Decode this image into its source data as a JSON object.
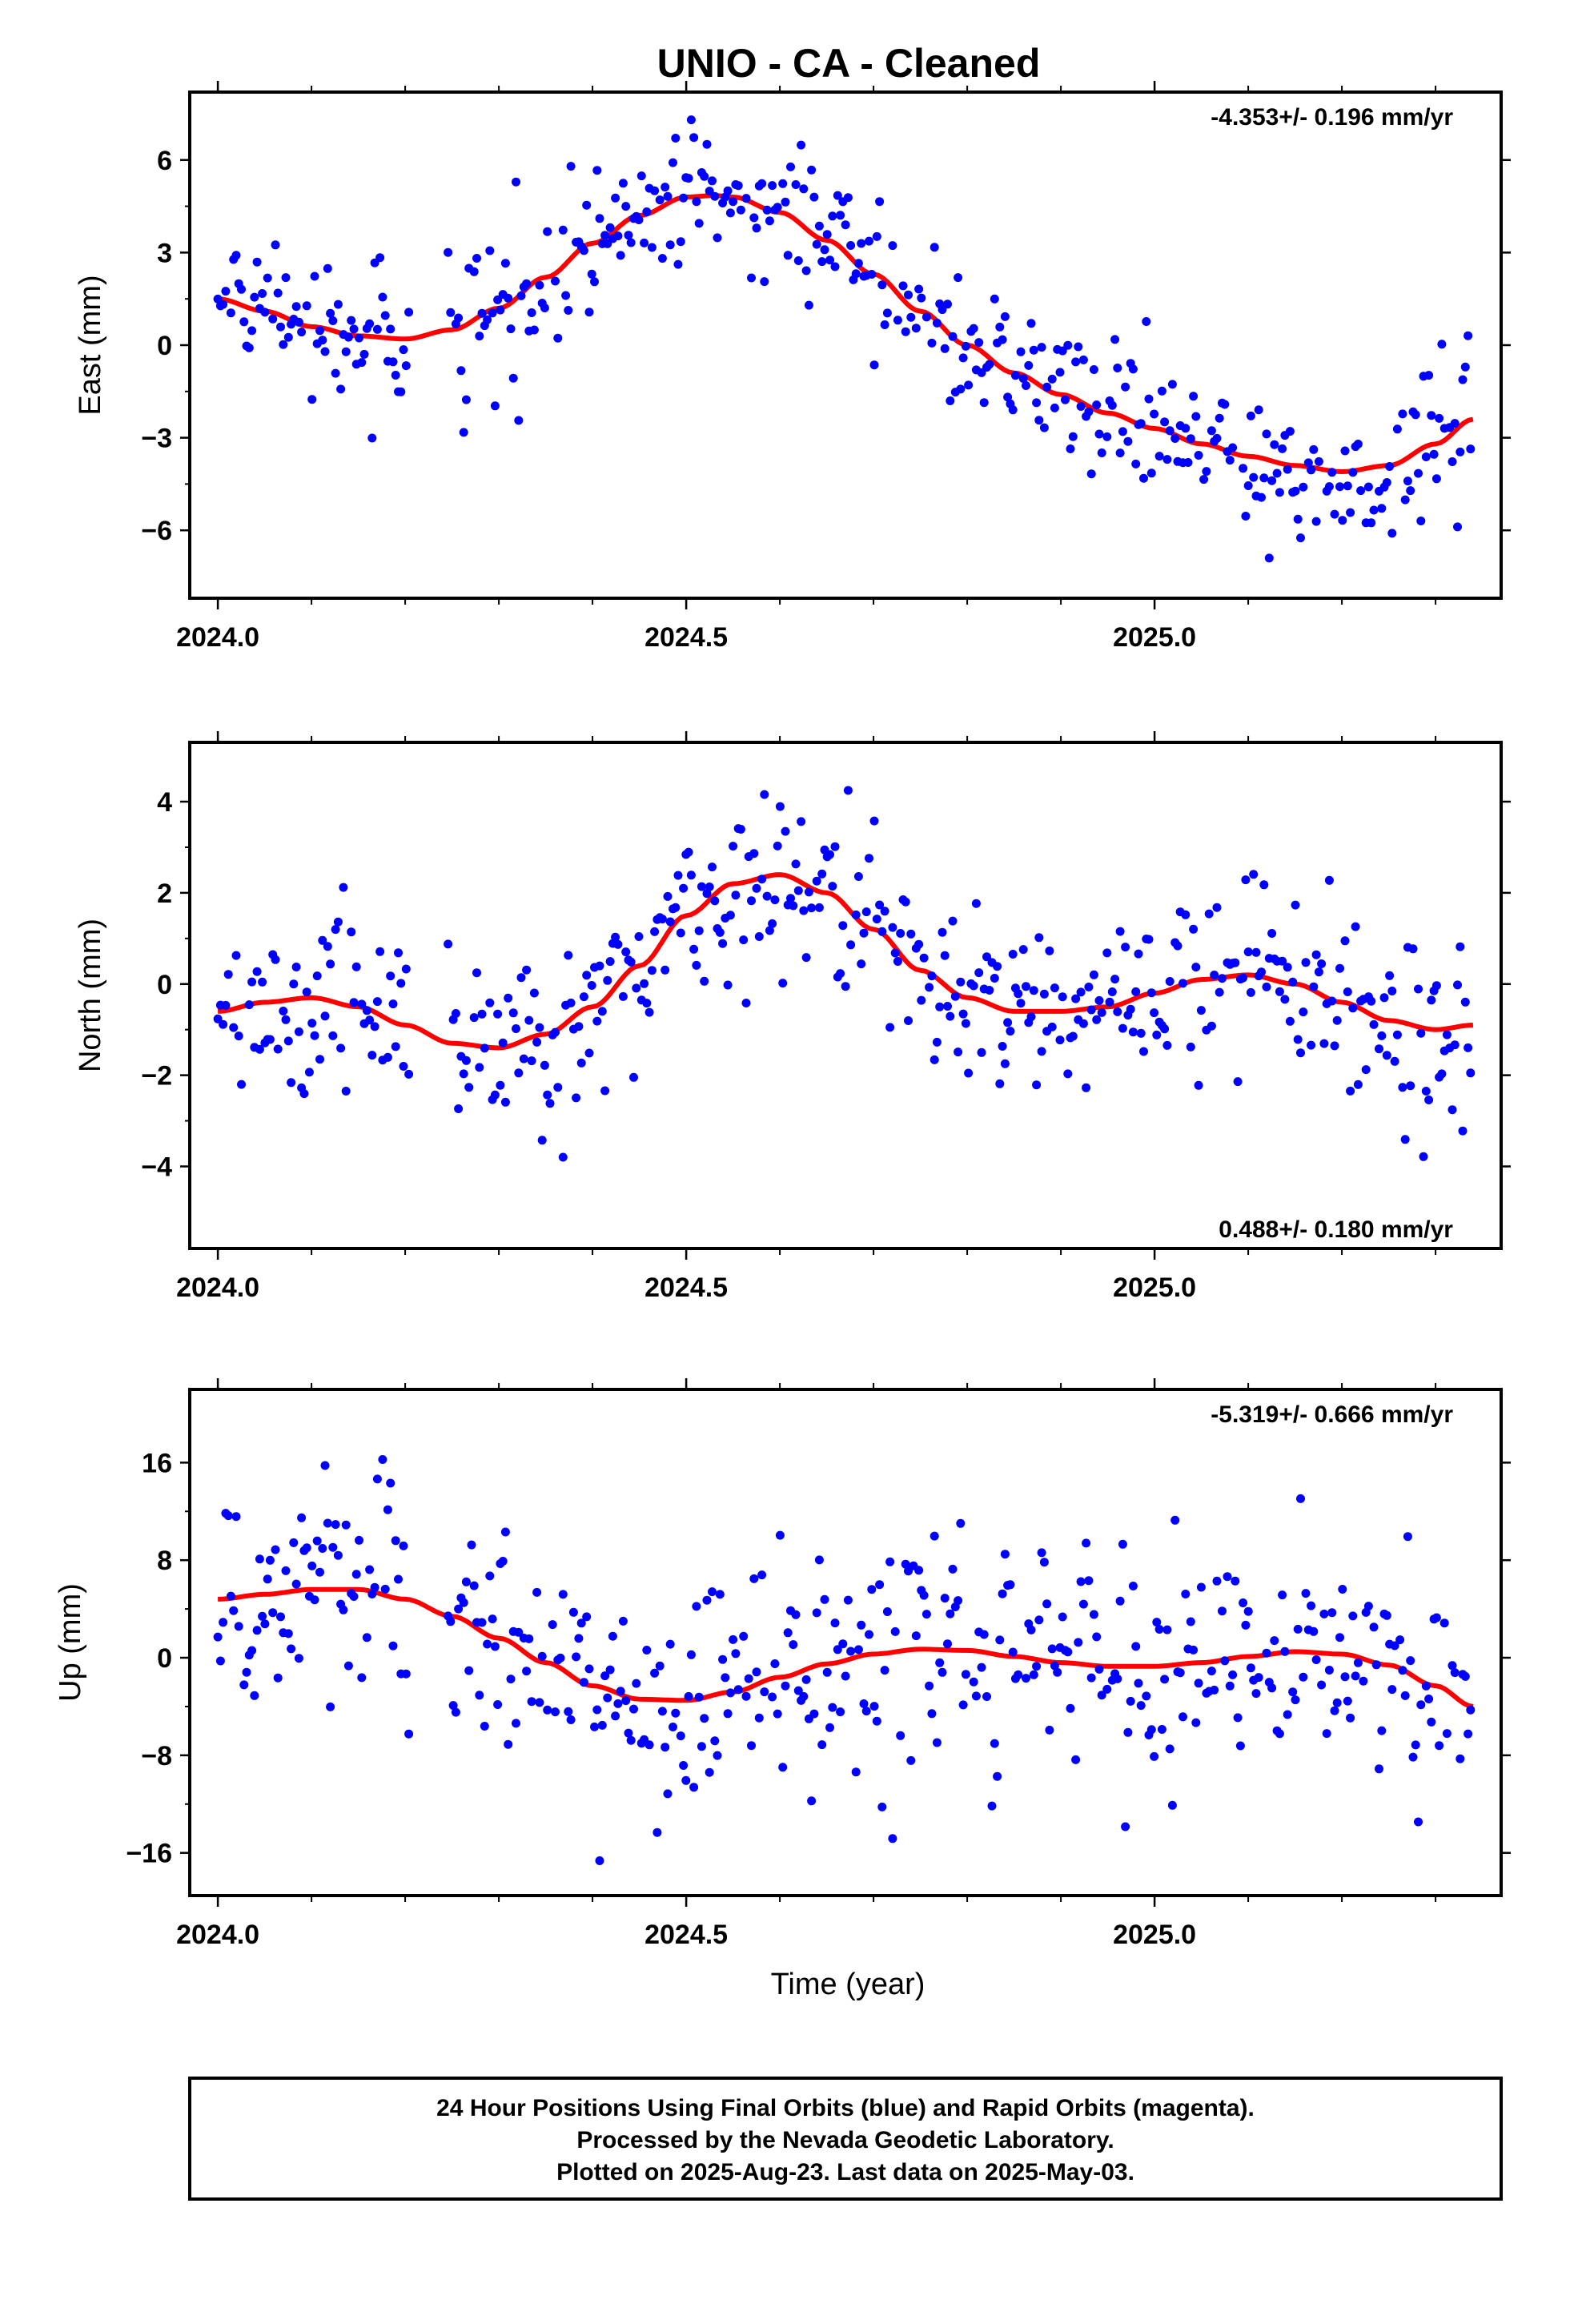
{
  "title": "UNIO  - CA - Cleaned",
  "colors": {
    "points": "#0000ff",
    "fit": "#ff0000",
    "frame": "#000000"
  },
  "footer": {
    "lines": [
      "24 Hour Positions Using Final Orbits (blue) and Rapid Orbits (magenta).",
      "Processed by the Nevada Geodetic Laboratory.",
      "Plotted on 2025-Aug-23. Last data on 2025-May-03."
    ]
  },
  "xaxis": {
    "label": "Time (year)",
    "ticks": [
      2024.0,
      2024.5,
      2025.0
    ],
    "tick_labels": [
      "2024.0",
      "2024.5",
      "2025.0"
    ],
    "range": [
      2023.97,
      2025.37
    ]
  },
  "chart_data": [
    {
      "type": "scatter",
      "component": "east",
      "ylabel": "East (mm)",
      "rate_label": "-4.353+/- 0.196 mm/yr",
      "rate_position": "top-right",
      "xlim": [
        2023.97,
        2025.37
      ],
      "ylim": [
        -8.2,
        8.2
      ],
      "yticks": [
        -6,
        -3,
        0,
        3,
        6
      ],
      "ytick_labels": [
        "−6",
        "−3",
        "0",
        "3",
        "6"
      ],
      "fit": {
        "x": [
          2024.0,
          2024.05,
          2024.1,
          2024.15,
          2024.2,
          2024.25,
          2024.3,
          2024.35,
          2024.4,
          2024.45,
          2024.5,
          2024.53,
          2024.55,
          2024.6,
          2024.65,
          2024.7,
          2024.75,
          2024.8,
          2024.85,
          2024.9,
          2024.95,
          2025.0,
          2025.05,
          2025.1,
          2025.15,
          2025.2,
          2025.25,
          2025.3,
          2025.34
        ],
        "y": [
          1.5,
          1.1,
          0.6,
          0.3,
          0.2,
          0.5,
          1.2,
          2.2,
          3.3,
          4.2,
          4.8,
          4.85,
          4.8,
          4.3,
          3.4,
          2.3,
          1.1,
          0.0,
          -0.9,
          -1.6,
          -2.2,
          -2.7,
          -3.2,
          -3.6,
          -3.9,
          -4.1,
          -3.9,
          -3.2,
          -2.4
        ]
      },
      "noise": 1.15
    },
    {
      "type": "scatter",
      "component": "north",
      "ylabel": "North (mm)",
      "rate_label": "0.488+/- 0.180 mm/yr",
      "rate_position": "bottom-right",
      "xlim": [
        2023.97,
        2025.37
      ],
      "ylim": [
        -5.8,
        5.3
      ],
      "yticks": [
        -4,
        -2,
        0,
        2,
        4
      ],
      "ytick_labels": [
        "−4",
        "−2",
        "0",
        "2",
        "4"
      ],
      "fit": {
        "x": [
          2024.0,
          2024.05,
          2024.1,
          2024.15,
          2024.2,
          2024.25,
          2024.3,
          2024.35,
          2024.4,
          2024.45,
          2024.5,
          2024.55,
          2024.6,
          2024.65,
          2024.7,
          2024.75,
          2024.8,
          2024.85,
          2024.9,
          2024.95,
          2025.0,
          2025.05,
          2025.1,
          2025.15,
          2025.2,
          2025.25,
          2025.3,
          2025.34
        ],
        "y": [
          -0.6,
          -0.4,
          -0.3,
          -0.5,
          -0.9,
          -1.3,
          -1.4,
          -1.1,
          -0.5,
          0.4,
          1.5,
          2.2,
          2.4,
          2.0,
          1.2,
          0.3,
          -0.3,
          -0.6,
          -0.6,
          -0.5,
          -0.2,
          0.1,
          0.2,
          0.0,
          -0.4,
          -0.8,
          -1.0,
          -0.9
        ]
      },
      "noise": 1.05
    },
    {
      "type": "scatter",
      "component": "up",
      "ylabel": "Up (mm)",
      "rate_label": "-5.319+/- 0.666 mm/yr",
      "rate_position": "top-right",
      "xlim": [
        2023.97,
        2025.37
      ],
      "ylim": [
        -19.5,
        22.0
      ],
      "yticks": [
        -16,
        -8,
        0,
        8,
        16
      ],
      "ytick_labels": [
        "−16",
        "−8",
        "0",
        "8",
        "16"
      ],
      "fit": {
        "x": [
          2024.0,
          2024.05,
          2024.1,
          2024.15,
          2024.2,
          2024.25,
          2024.3,
          2024.35,
          2024.4,
          2024.45,
          2024.5,
          2024.55,
          2024.6,
          2024.65,
          2024.7,
          2024.75,
          2024.8,
          2024.85,
          2024.9,
          2024.95,
          2025.0,
          2025.05,
          2025.1,
          2025.15,
          2025.2,
          2025.25,
          2025.3,
          2025.34
        ],
        "y": [
          4.8,
          5.2,
          5.6,
          5.6,
          4.8,
          3.4,
          1.6,
          -0.4,
          -2.3,
          -3.4,
          -3.5,
          -2.8,
          -1.6,
          -0.5,
          0.3,
          0.7,
          0.6,
          0.1,
          -0.4,
          -0.7,
          -0.7,
          -0.4,
          0.1,
          0.5,
          0.3,
          -0.6,
          -2.3,
          -4.0
        ]
      },
      "noise": 5.0
    }
  ]
}
